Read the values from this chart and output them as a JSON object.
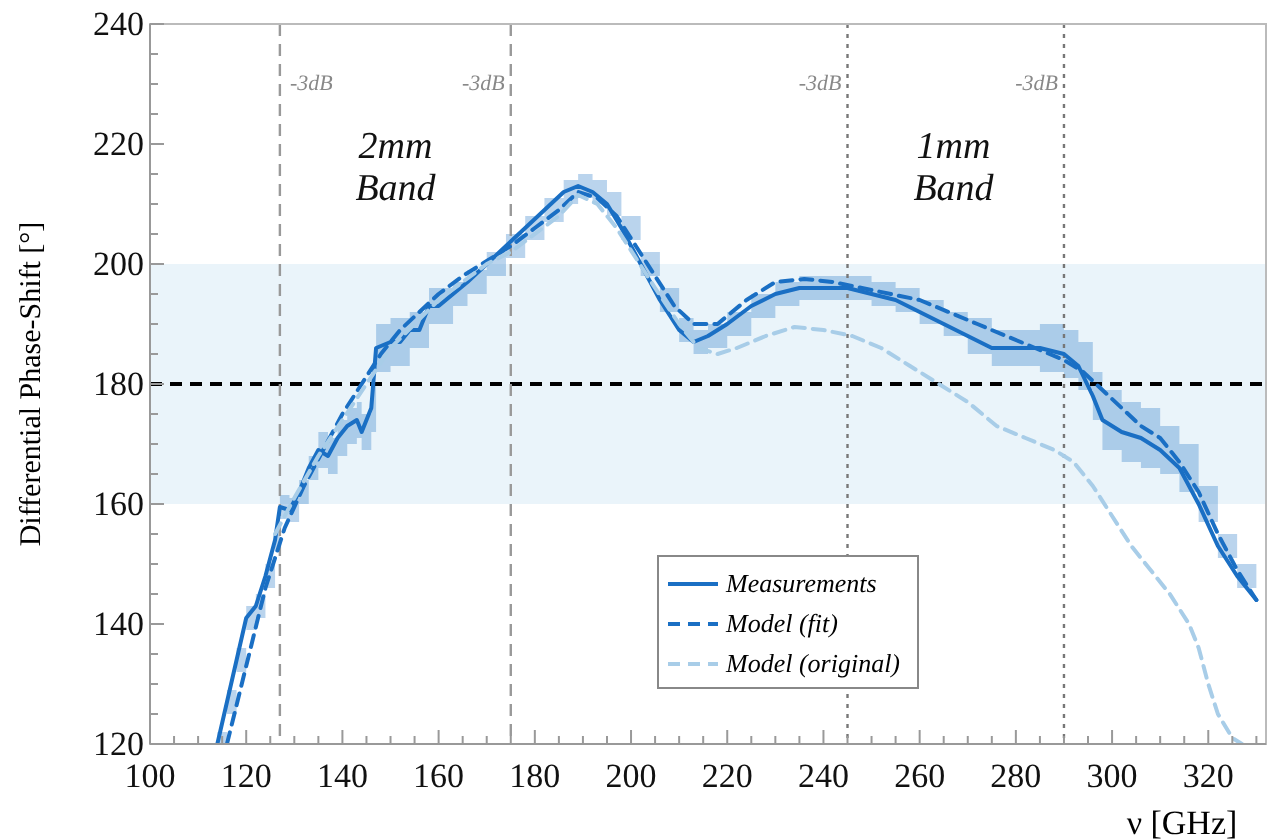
{
  "chart_data": {
    "type": "line",
    "xlabel": "ν [GHz]",
    "ylabel": "Differential Phase-Shift [°]",
    "xlim": [
      100,
      332
    ],
    "ylim": [
      120,
      240
    ],
    "xticks": [
      100,
      {
        "value": 105,
        "label": null
      },
      {
        "value": 110,
        "label": null
      },
      {
        "value": 115,
        "label": null
      },
      120,
      {
        "value": 125,
        "label": null
      },
      {
        "value": 130,
        "label": null
      },
      {
        "value": 135,
        "label": null
      },
      140,
      {
        "value": 145,
        "label": null
      },
      {
        "value": 150,
        "label": null
      },
      {
        "value": 155,
        "label": null
      },
      160,
      {
        "value": 165,
        "label": null
      },
      {
        "value": 170,
        "label": null
      },
      {
        "value": 175,
        "label": null
      },
      180,
      {
        "value": 185,
        "label": null
      },
      {
        "value": 190,
        "label": null
      },
      {
        "value": 195,
        "label": null
      },
      200,
      {
        "value": 205,
        "label": null
      },
      {
        "value": 210,
        "label": null
      },
      {
        "value": 215,
        "label": null
      },
      220,
      {
        "value": 225,
        "label": null
      },
      {
        "value": 230,
        "label": null
      },
      {
        "value": 235,
        "label": null
      },
      240,
      {
        "value": 245,
        "label": null
      },
      {
        "value": 250,
        "label": null
      },
      {
        "value": 255,
        "label": null
      },
      260,
      {
        "value": 265,
        "label": null
      },
      {
        "value": 270,
        "label": null
      },
      {
        "value": 275,
        "label": null
      },
      280,
      {
        "value": 285,
        "label": null
      },
      {
        "value": 290,
        "label": null
      },
      {
        "value": 295,
        "label": null
      },
      300,
      {
        "value": 305,
        "label": null
      },
      {
        "value": 310,
        "label": null
      },
      {
        "value": 315,
        "label": null
      },
      320,
      {
        "value": 325,
        "label": null
      },
      {
        "value": 330,
        "label": null
      }
    ],
    "yticks": [
      120,
      {
        "value": 125,
        "label": null
      },
      {
        "value": 130,
        "label": null
      },
      {
        "value": 135,
        "label": null
      },
      140,
      {
        "value": 145,
        "label": null
      },
      {
        "value": 150,
        "label": null
      },
      {
        "value": 155,
        "label": null
      },
      160,
      {
        "value": 165,
        "label": null
      },
      {
        "value": 170,
        "label": null
      },
      {
        "value": 175,
        "label": null
      },
      180,
      {
        "value": 185,
        "label": null
      },
      {
        "value": 190,
        "label": null
      },
      {
        "value": 195,
        "label": null
      },
      200,
      {
        "value": 205,
        "label": null
      },
      {
        "value": 210,
        "label": null
      },
      {
        "value": 215,
        "label": null
      },
      220,
      {
        "value": 225,
        "label": null
      },
      {
        "value": 230,
        "label": null
      },
      {
        "value": 235,
        "label": null
      },
      240
    ],
    "grid": false,
    "legend": "bottom",
    "series": [
      {
        "name": "Measurements",
        "color": "#1a6fc4",
        "line_style": "solid",
        "x": [
          114,
          116,
          118,
          120,
          122,
          124,
          126,
          127,
          129,
          131,
          133,
          135,
          137,
          139,
          141,
          143,
          144,
          146,
          147,
          150,
          152,
          154,
          156,
          158,
          160,
          163,
          166,
          170,
          174,
          178,
          182,
          186,
          189,
          192,
          195,
          198,
          202,
          206,
          210,
          213,
          216,
          220,
          225,
          230,
          235,
          240,
          245,
          250,
          255,
          260,
          265,
          270,
          275,
          280,
          285,
          290,
          293,
          296,
          298,
          302,
          306,
          310,
          314,
          318,
          322,
          326,
          330
        ],
        "values": [
          120,
          127,
          134,
          141,
          143,
          148,
          154,
          159.5,
          159,
          162,
          166,
          169,
          168,
          171,
          173,
          174,
          172,
          176,
          186,
          187,
          187,
          189,
          189,
          193,
          193,
          195,
          197,
          200,
          203,
          206,
          209,
          212,
          213,
          212,
          210,
          206,
          200,
          194,
          189,
          187,
          188,
          190,
          193,
          195,
          196,
          196,
          196,
          195,
          194,
          192,
          190,
          188,
          186,
          186,
          186,
          185,
          183,
          178,
          174,
          172,
          171,
          169,
          166,
          160,
          153,
          148,
          144
        ],
        "lower": [
          120,
          125,
          132,
          139,
          141,
          146,
          152,
          157.5,
          157,
          160,
          164,
          166,
          165,
          168,
          170,
          171,
          169,
          172,
          182,
          183,
          183,
          186,
          186,
          190,
          190,
          193,
          195,
          198,
          201,
          204,
          207,
          210,
          211,
          210,
          208,
          204,
          198,
          192,
          187,
          185,
          186,
          188,
          191,
          193,
          194,
          194,
          194,
          193,
          192,
          190,
          188,
          185,
          183,
          183,
          182,
          181,
          179,
          174,
          169,
          167,
          166,
          165,
          162,
          157,
          151,
          146,
          142
        ],
        "upper": [
          122,
          129,
          136,
          143,
          145,
          150,
          156,
          161.5,
          161,
          164,
          168,
          172,
          171,
          174,
          176,
          177,
          175,
          180,
          190,
          191,
          191,
          192,
          192,
          196,
          196,
          197,
          199,
          202,
          205,
          208,
          211,
          214,
          215,
          214,
          212,
          208,
          202,
          196,
          191,
          189,
          190,
          192,
          195,
          197,
          198,
          198,
          198,
          197,
          196,
          194,
          192,
          191,
          189,
          189,
          190,
          189,
          187,
          182,
          179,
          177,
          176,
          173,
          170,
          163,
          155,
          150,
          146
        ]
      },
      {
        "name": "Model (fit)",
        "color": "#1a6fc4",
        "line_style": "dashed",
        "x": [
          116,
          120,
          124,
          128,
          132,
          136,
          140,
          144,
          148,
          152,
          156,
          160,
          165,
          170,
          175,
          180,
          185,
          189,
          193,
          197,
          201,
          205,
          209,
          213,
          218,
          224,
          230,
          236,
          242,
          248,
          254,
          260,
          266,
          272,
          278,
          284,
          290,
          294,
          298,
          302,
          306,
          310,
          314,
          318,
          322,
          326,
          330
        ],
        "values": [
          120,
          133,
          146,
          156,
          163,
          169,
          175,
          180,
          185,
          189,
          192,
          195,
          198,
          200.5,
          203,
          206,
          209,
          212,
          211,
          208,
          203,
          198,
          193,
          190,
          190,
          194,
          197,
          197.5,
          197,
          196,
          195,
          194,
          192,
          190,
          188,
          186,
          184,
          182,
          179,
          176,
          173,
          171,
          167,
          162,
          155,
          149,
          144
        ]
      },
      {
        "name": "Model (original)",
        "color": "#a8cde8",
        "line_style": "dashed",
        "x": [
          126,
          130,
          135,
          140,
          145,
          150,
          155,
          160,
          165,
          170,
          175,
          180,
          185,
          189,
          193,
          197,
          201,
          205,
          210,
          214,
          218,
          222,
          228,
          234,
          240,
          246,
          252,
          258,
          264,
          270,
          276,
          282,
          288,
          292,
          296,
          300,
          304,
          308,
          312,
          316,
          318,
          320,
          322,
          325,
          327
        ],
        "values": [
          155,
          161,
          168,
          174,
          180,
          186,
          190,
          194,
          197,
          200,
          202,
          205,
          208,
          211.5,
          210,
          206,
          201,
          196,
          190,
          186,
          185,
          186,
          188,
          189.5,
          189,
          188,
          186,
          183,
          180,
          177,
          173,
          171,
          169,
          167,
          163,
          158,
          153,
          149,
          145,
          140,
          136,
          130,
          125,
          121,
          120
        ]
      }
    ],
    "bands": [
      {
        "axis": "y",
        "from": 160,
        "to": 200,
        "color": "#eaf4fa"
      }
    ],
    "ref_lines": [
      {
        "axis": "y",
        "value": 180,
        "color": "#000000",
        "line_style": "dashed"
      },
      {
        "axis": "x",
        "value": 127,
        "label": "-3dB",
        "color": "#999999",
        "line_style": "dashed"
      },
      {
        "axis": "x",
        "value": 175,
        "label": "-3dB",
        "color": "#999999",
        "line_style": "dashed"
      },
      {
        "axis": "x",
        "value": 245,
        "label": "-3dB",
        "color": "#777777",
        "line_style": "dotted"
      },
      {
        "axis": "x",
        "value": 290,
        "label": "-3dB",
        "color": "#777777",
        "line_style": "dotted"
      }
    ],
    "annotations": [
      "2mm Band",
      "1mm Band"
    ]
  }
}
